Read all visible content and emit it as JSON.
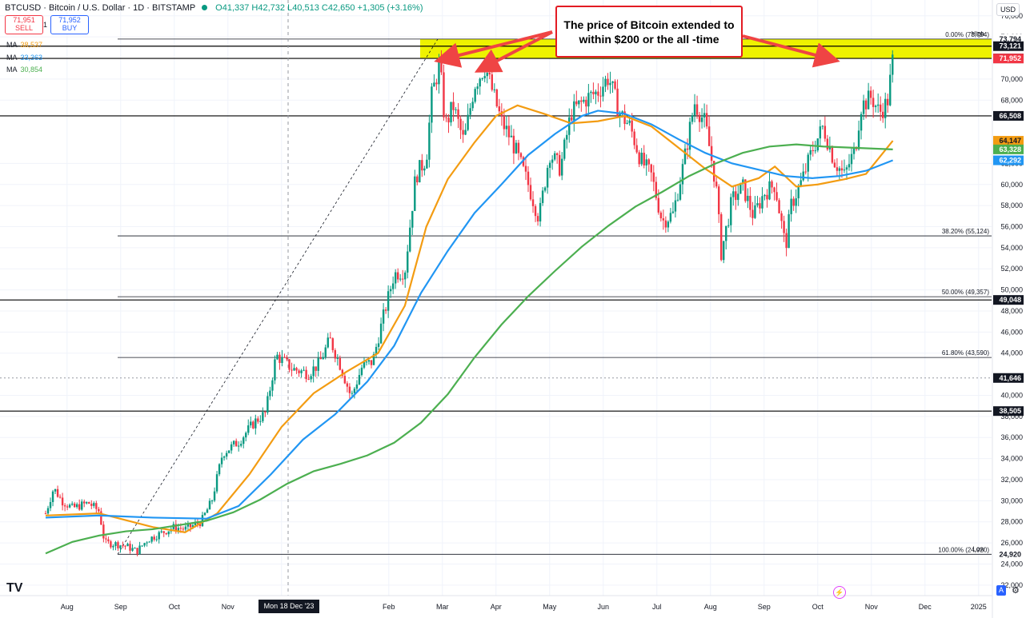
{
  "header": {
    "symbol": "BTCUSD · Bitcoin / U.S. Dollar · 1D · BITSTAMP",
    "ohlc": "O41,337 H42,732 L40,513 C42,650 +1,305 (+3.16%)"
  },
  "trade": {
    "sell_price": "71,951",
    "sell_label": "SELL",
    "spread": "1",
    "buy_price": "71,952",
    "buy_label": "BUY"
  },
  "moving_averages": [
    {
      "label": "MA",
      "value": "38,537",
      "color": "#f39c12"
    },
    {
      "label": "MA",
      "value": "33,363",
      "color": "#2196f3"
    },
    {
      "label": "MA",
      "value": "30,854",
      "color": "#4caf50"
    }
  ],
  "currency": "USD",
  "annotation": "The price of Bitcoin extended to within $200 or the all -time",
  "cursor_date": "Mon 18 Dec '23",
  "logo": "TV",
  "scale_mode": "A",
  "chart_data": {
    "type": "candlestick",
    "ylim": [
      21000,
      77500
    ],
    "y_ticks": [
      22000,
      24000,
      26000,
      28000,
      30000,
      32000,
      34000,
      36000,
      38000,
      40000,
      44000,
      46000,
      48000,
      50000,
      52000,
      54000,
      56000,
      58000,
      60000,
      62000,
      68000,
      70000,
      74000,
      76000
    ],
    "x_ticks": [
      {
        "label": "Aug",
        "t": 0.4
      },
      {
        "label": "Sep",
        "t": 1.4
      },
      {
        "label": "Oct",
        "t": 2.4
      },
      {
        "label": "Nov",
        "t": 3.4
      },
      {
        "label": "Dec",
        "t": 4.4
      },
      {
        "label": "Feb",
        "t": 6.4
      },
      {
        "label": "Mar",
        "t": 7.4
      },
      {
        "label": "Apr",
        "t": 8.4
      },
      {
        "label": "May",
        "t": 9.4
      },
      {
        "label": "Jun",
        "t": 10.4
      },
      {
        "label": "Jul",
        "t": 11.4
      },
      {
        "label": "Aug",
        "t": 12.4
      },
      {
        "label": "Sep",
        "t": 13.4
      },
      {
        "label": "Oct",
        "t": 14.4
      },
      {
        "label": "Nov",
        "t": 15.4
      },
      {
        "label": "Dec",
        "t": 16.4
      },
      {
        "label": "2025",
        "t": 17.4
      }
    ],
    "price_path": [
      [
        0,
        28800
      ],
      [
        0.15,
        31200
      ],
      [
        0.3,
        30000
      ],
      [
        0.5,
        29300
      ],
      [
        0.8,
        29800
      ],
      [
        1.0,
        29000
      ],
      [
        1.1,
        26000
      ],
      [
        1.3,
        25900
      ],
      [
        1.5,
        25700
      ],
      [
        1.7,
        25200
      ],
      [
        1.9,
        26300
      ],
      [
        2.1,
        26800
      ],
      [
        2.4,
        27500
      ],
      [
        2.6,
        27300
      ],
      [
        2.9,
        28000
      ],
      [
        3.1,
        30000
      ],
      [
        3.3,
        34500
      ],
      [
        3.6,
        35600
      ],
      [
        3.9,
        37500
      ],
      [
        4.1,
        38300
      ],
      [
        4.3,
        43800
      ],
      [
        4.6,
        42500
      ],
      [
        4.9,
        42100
      ],
      [
        5.1,
        43000
      ],
      [
        5.3,
        45300
      ],
      [
        5.5,
        42800
      ],
      [
        5.7,
        39800
      ],
      [
        5.9,
        42700
      ],
      [
        6.1,
        43200
      ],
      [
        6.3,
        47500
      ],
      [
        6.5,
        51500
      ],
      [
        6.7,
        51800
      ],
      [
        6.9,
        60800
      ],
      [
        7.1,
        62500
      ],
      [
        7.2,
        68400
      ],
      [
        7.35,
        71500
      ],
      [
        7.45,
        65500
      ],
      [
        7.6,
        67500
      ],
      [
        7.8,
        64000
      ],
      [
        8.0,
        69500
      ],
      [
        8.2,
        71200
      ],
      [
        8.3,
        69400
      ],
      [
        8.5,
        66000
      ],
      [
        8.7,
        64100
      ],
      [
        9.0,
        60000
      ],
      [
        9.2,
        56800
      ],
      [
        9.4,
        63000
      ],
      [
        9.6,
        61500
      ],
      [
        9.8,
        66800
      ],
      [
        10.1,
        68200
      ],
      [
        10.3,
        68800
      ],
      [
        10.5,
        70200
      ],
      [
        10.7,
        66800
      ],
      [
        10.9,
        65500
      ],
      [
        11.1,
        62300
      ],
      [
        11.3,
        60800
      ],
      [
        11.5,
        56500
      ],
      [
        11.7,
        57200
      ],
      [
        11.9,
        62000
      ],
      [
        12.1,
        67800
      ],
      [
        12.3,
        65800
      ],
      [
        12.5,
        60000
      ],
      [
        12.6,
        53500
      ],
      [
        12.8,
        58500
      ],
      [
        13.0,
        59800
      ],
      [
        13.2,
        57000
      ],
      [
        13.4,
        59200
      ],
      [
        13.6,
        60000
      ],
      [
        13.8,
        54000
      ],
      [
        13.9,
        58000
      ],
      [
        14.1,
        60300
      ],
      [
        14.3,
        63300
      ],
      [
        14.5,
        65500
      ],
      [
        14.7,
        62300
      ],
      [
        14.9,
        60800
      ],
      [
        15.0,
        62200
      ],
      [
        15.1,
        63300
      ],
      [
        15.2,
        67400
      ],
      [
        15.4,
        68300
      ],
      [
        15.55,
        66800
      ],
      [
        15.7,
        67800
      ],
      [
        15.8,
        71900
      ]
    ],
    "ma_series": [
      {
        "color": "#f39c12",
        "points": [
          [
            0,
            28600
          ],
          [
            1,
            28800
          ],
          [
            2,
            27500
          ],
          [
            2.6,
            27000
          ],
          [
            3.2,
            28800
          ],
          [
            3.8,
            32500
          ],
          [
            4.4,
            37000
          ],
          [
            5,
            40200
          ],
          [
            5.6,
            42200
          ],
          [
            6.2,
            44000
          ],
          [
            6.7,
            48500
          ],
          [
            7.1,
            56000
          ],
          [
            7.5,
            60500
          ],
          [
            8,
            64000
          ],
          [
            8.4,
            66500
          ],
          [
            8.8,
            67500
          ],
          [
            9.3,
            66700
          ],
          [
            9.8,
            65800
          ],
          [
            10.3,
            66000
          ],
          [
            10.8,
            66500
          ],
          [
            11.3,
            65500
          ],
          [
            11.8,
            63500
          ],
          [
            12.3,
            61500
          ],
          [
            12.8,
            59800
          ],
          [
            13.3,
            60600
          ],
          [
            13.6,
            61700
          ],
          [
            14.0,
            59800
          ],
          [
            14.4,
            60000
          ],
          [
            14.9,
            60500
          ],
          [
            15.3,
            61000
          ],
          [
            15.8,
            64147
          ]
        ]
      },
      {
        "color": "#2196f3",
        "points": [
          [
            0,
            28400
          ],
          [
            1,
            28600
          ],
          [
            2,
            28400
          ],
          [
            3,
            28300
          ],
          [
            3.6,
            29500
          ],
          [
            4.2,
            32500
          ],
          [
            4.8,
            35800
          ],
          [
            5.4,
            38200
          ],
          [
            6,
            41300
          ],
          [
            6.5,
            44700
          ],
          [
            7,
            49700
          ],
          [
            7.5,
            53700
          ],
          [
            8,
            57300
          ],
          [
            8.5,
            60000
          ],
          [
            9,
            62800
          ],
          [
            9.5,
            64800
          ],
          [
            10,
            66500
          ],
          [
            10.3,
            67000
          ],
          [
            10.8,
            66700
          ],
          [
            11.3,
            65700
          ],
          [
            11.8,
            64300
          ],
          [
            12.3,
            63000
          ],
          [
            12.8,
            62000
          ],
          [
            13.3,
            61400
          ],
          [
            13.8,
            60800
          ],
          [
            14.3,
            60600
          ],
          [
            14.8,
            60800
          ],
          [
            15.3,
            61300
          ],
          [
            15.8,
            62292
          ]
        ]
      },
      {
        "color": "#4caf50",
        "points": [
          [
            0,
            25000
          ],
          [
            0.5,
            26100
          ],
          [
            1,
            26700
          ],
          [
            1.5,
            27100
          ],
          [
            2,
            27300
          ],
          [
            2.5,
            27700
          ],
          [
            3,
            28100
          ],
          [
            3.5,
            28900
          ],
          [
            4,
            30100
          ],
          [
            4.5,
            31600
          ],
          [
            5,
            32800
          ],
          [
            5.5,
            33500
          ],
          [
            6,
            34300
          ],
          [
            6.5,
            35500
          ],
          [
            7,
            37400
          ],
          [
            7.5,
            40100
          ],
          [
            8,
            43600
          ],
          [
            8.5,
            46700
          ],
          [
            9,
            49400
          ],
          [
            9.5,
            51800
          ],
          [
            10,
            54100
          ],
          [
            10.5,
            56100
          ],
          [
            11,
            57900
          ],
          [
            11.5,
            59300
          ],
          [
            12,
            60800
          ],
          [
            12.5,
            62000
          ],
          [
            13,
            63000
          ],
          [
            13.5,
            63600
          ],
          [
            14,
            63800
          ],
          [
            14.5,
            63600
          ],
          [
            15,
            63500
          ],
          [
            15.8,
            63328
          ]
        ]
      }
    ],
    "horizontal_levels": [
      {
        "price": 71958,
        "color": "#000000",
        "label": "71,958"
      },
      {
        "price": 73121,
        "color": "#000000",
        "label": "73,121"
      },
      {
        "price": 66508,
        "color": "#000000",
        "label": "66,508"
      },
      {
        "price": 49048,
        "color": "#000000",
        "label": "49,048"
      },
      {
        "price": 38505,
        "color": "#000000",
        "label": "38,505"
      }
    ],
    "fib_levels": [
      {
        "price": 73794,
        "label": "0.00% (73,794)"
      },
      {
        "price": 55124,
        "label": "38.20% (55,124)"
      },
      {
        "price": 49357,
        "label": "50.00% (49,357)"
      },
      {
        "price": 43590,
        "label": "61.80% (43,590)"
      },
      {
        "price": 24920,
        "label": "100.00% (24,920)"
      }
    ],
    "highlight_zone": {
      "from": 71958,
      "to": 73794,
      "color": "#eef200"
    },
    "price_labels": [
      {
        "price": 73794,
        "text": "73,794",
        "bg": "#ffffff",
        "fg": "#131722",
        "tag": "High"
      },
      {
        "price": 73121,
        "text": "73,121",
        "bg": "#131722",
        "fg": "#ffffff"
      },
      {
        "price": 71958,
        "text": "71,958",
        "bg": "#131722",
        "fg": "#ffffff"
      },
      {
        "price": 71952,
        "text": "71,952",
        "bg": "#f23645",
        "fg": "#ffffff"
      },
      {
        "price": 66508,
        "text": "66,508",
        "bg": "#131722",
        "fg": "#ffffff"
      },
      {
        "price": 64147,
        "text": "64,147",
        "bg": "#f39c12",
        "fg": "#131722"
      },
      {
        "price": 63328,
        "text": "63,328",
        "bg": "#4caf50",
        "fg": "#ffffff"
      },
      {
        "price": 62292,
        "text": "62,292",
        "bg": "#2196f3",
        "fg": "#ffffff"
      },
      {
        "price": 49048,
        "text": "49,048",
        "bg": "#131722",
        "fg": "#ffffff"
      },
      {
        "price": 41646,
        "text": "41,646",
        "bg": "#131722",
        "fg": "#ffffff"
      },
      {
        "price": 38505,
        "text": "38,505",
        "bg": "#131722",
        "fg": "#ffffff"
      },
      {
        "price": 24920,
        "text": "24,920",
        "bg": "#ffffff",
        "fg": "#131722",
        "tag": "Low"
      }
    ],
    "colors": {
      "up": "#089981",
      "down": "#f23645",
      "grid": "#f0f3fa"
    }
  }
}
